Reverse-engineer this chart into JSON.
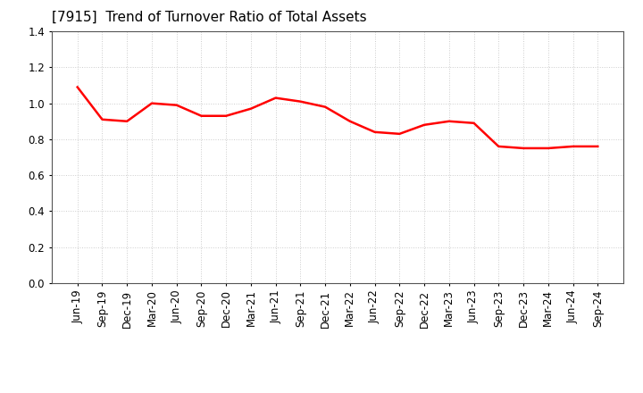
{
  "title": "[7915]  Trend of Turnover Ratio of Total Assets",
  "title_fontsize": 11,
  "title_fontweight": "normal",
  "labels": [
    "Jun-19",
    "Sep-19",
    "Dec-19",
    "Mar-20",
    "Jun-20",
    "Sep-20",
    "Dec-20",
    "Mar-21",
    "Jun-21",
    "Sep-21",
    "Dec-21",
    "Mar-22",
    "Jun-22",
    "Sep-22",
    "Dec-22",
    "Mar-23",
    "Jun-23",
    "Sep-23",
    "Dec-23",
    "Mar-24",
    "Jun-24",
    "Sep-24"
  ],
  "values": [
    1.09,
    0.91,
    0.9,
    1.0,
    0.99,
    0.93,
    0.93,
    0.97,
    1.03,
    1.01,
    0.98,
    0.9,
    0.84,
    0.83,
    0.88,
    0.9,
    0.89,
    0.76,
    0.75,
    0.75,
    0.76,
    0.76
  ],
  "line_color": "#FF0000",
  "line_width": 1.8,
  "ylim": [
    0.0,
    1.4
  ],
  "yticks": [
    0.0,
    0.2,
    0.4,
    0.6,
    0.8,
    1.0,
    1.2,
    1.4
  ],
  "grid_color": "#cccccc",
  "bg_color": "#ffffff",
  "plot_bg_color": "#ffffff",
  "tick_label_fontsize": 8.5
}
